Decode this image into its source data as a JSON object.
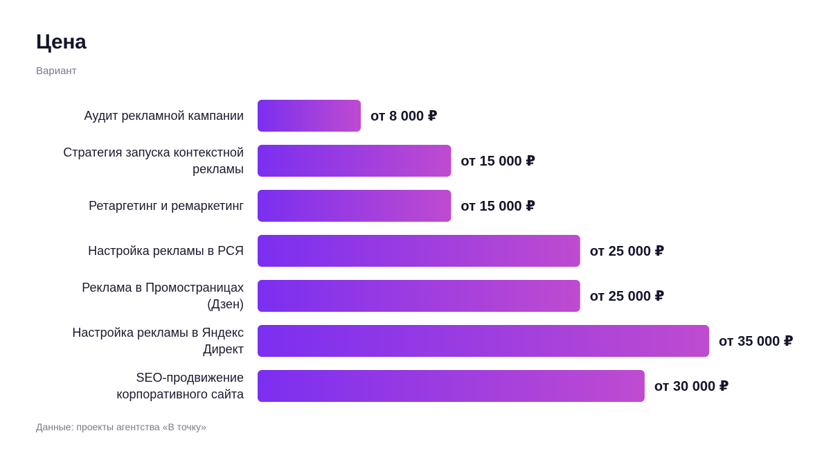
{
  "header": {
    "title": "Цена",
    "subtitle": "Вариант"
  },
  "footer": {
    "source": "Данные: проекты агентства «В точку»"
  },
  "colors": {
    "bar_gradient_start": "#7b2ff0",
    "bar_gradient_end": "#bf4bd0"
  },
  "chart_data": {
    "type": "bar",
    "orientation": "horizontal",
    "title": "Цена",
    "subtitle": "Вариант",
    "categories": [
      [
        "Аудит рекламной кампании"
      ],
      [
        "Стратегия запуска контекстной",
        "рекламы"
      ],
      [
        "Ретаргетинг и ремаркетинг"
      ],
      [
        "Настройка рекламы в РСЯ"
      ],
      [
        "Реклама в Промостраницах",
        "(Дзен)"
      ],
      [
        "Настройка рекламы в Яндекс",
        "Директ"
      ],
      [
        "SEO-продвижение",
        "корпоративного сайта"
      ]
    ],
    "values": [
      8000,
      15000,
      15000,
      25000,
      25000,
      35000,
      30000
    ],
    "value_labels": [
      "от 8 000 ₽",
      "от 15 000 ₽",
      "от 15 000 ₽",
      "от 25 000 ₽",
      "от 25 000 ₽",
      "от 35 000 ₽",
      "от 30 000 ₽"
    ],
    "xlim": [
      0,
      35000
    ],
    "grid": false,
    "legend": "none"
  }
}
